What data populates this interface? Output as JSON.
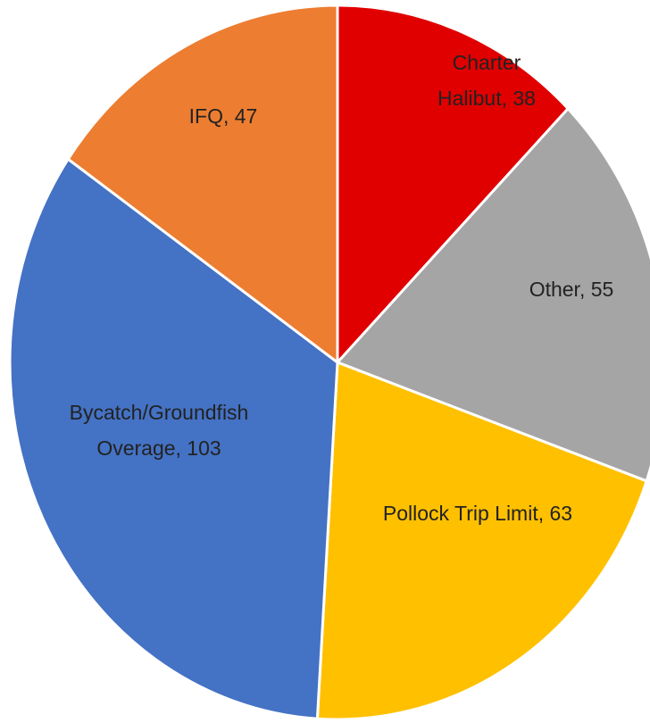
{
  "chart_data": {
    "type": "pie",
    "values": [
      38,
      55,
      63,
      103,
      47
    ],
    "value_labels": [
      "Charter Halibut, 38",
      "Other, 55",
      "Pollock Trip Limit, 63",
      "Bycatch/Groundfish Overage, 103",
      "IFQ, 47"
    ],
    "colors": [
      "#e00000",
      "#a5a5a5",
      "#ffc000",
      "#4472c4",
      "#ed7d31"
    ]
  }
}
